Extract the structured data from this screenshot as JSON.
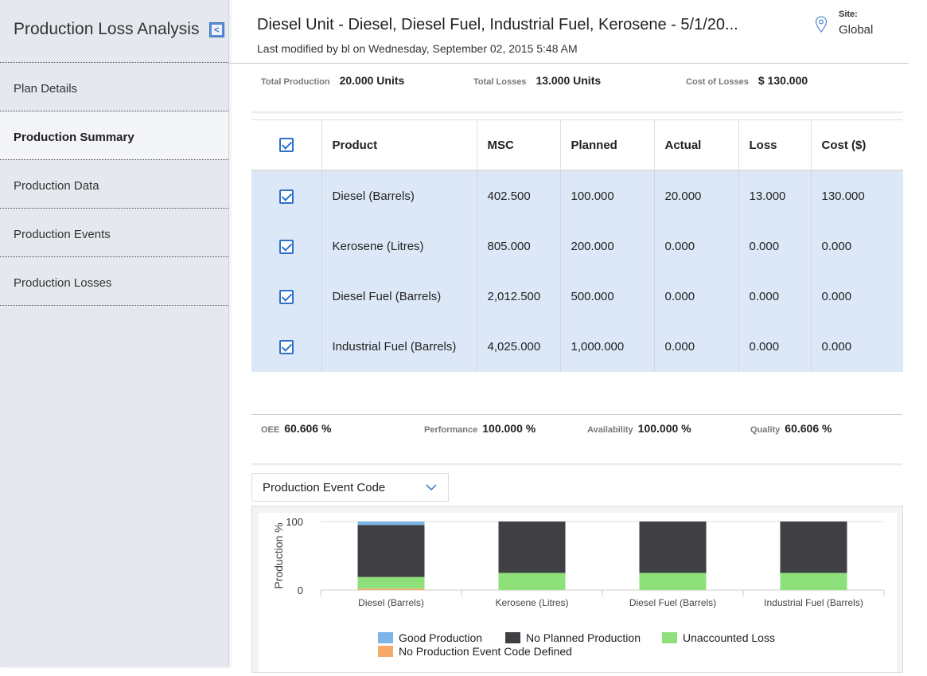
{
  "sidebar": {
    "title": "Production Loss Analysis",
    "collapse_glyph": "<",
    "items": [
      {
        "label": "Plan Details"
      },
      {
        "label": "Production Summary",
        "active": true
      },
      {
        "label": "Production Data"
      },
      {
        "label": "Production Events"
      },
      {
        "label": "Production Losses"
      }
    ]
  },
  "header": {
    "title": "Diesel Unit - Diesel, Diesel Fuel, Industrial Fuel, Kerosene - 5/1/20...",
    "subtitle": "Last modified by bl on Wednesday, September 02, 2015 5:48 AM",
    "site_label": "Site:",
    "site_value": "Global",
    "site_icon": "location-pin-icon"
  },
  "totals": {
    "production_label": "Total Production",
    "production_value": "20.000 Units",
    "losses_label": "Total Losses",
    "losses_value": "13.000 Units",
    "cost_label": "Cost of Losses",
    "cost_value": "$ 130.000"
  },
  "table": {
    "columns": [
      "Product",
      "MSC",
      "Planned",
      "Actual",
      "Loss",
      "Cost ($)"
    ],
    "rows": [
      {
        "checked": true,
        "cells": [
          "Diesel (Barrels)",
          "402.500",
          "100.000",
          "20.000",
          "13.000",
          "130.000"
        ]
      },
      {
        "checked": true,
        "cells": [
          "Kerosene (Litres)",
          "805.000",
          "200.000",
          "0.000",
          "0.000",
          "0.000"
        ]
      },
      {
        "checked": true,
        "cells": [
          "Diesel Fuel (Barrels)",
          "2,012.500",
          "500.000",
          "0.000",
          "0.000",
          "0.000"
        ]
      },
      {
        "checked": true,
        "cells": [
          "Industrial Fuel (Barrels)",
          "4,025.000",
          "1,000.000",
          "0.000",
          "0.000",
          "0.000"
        ]
      }
    ]
  },
  "metrics": {
    "oee_label": "OEE",
    "oee_value": "60.606 %",
    "performance_label": "Performance",
    "performance_value": "100.000 %",
    "availability_label": "Availability",
    "availability_value": "100.000 %",
    "quality_label": "Quality",
    "quality_value": "60.606 %"
  },
  "dropdown": {
    "selected": "Production Event Code"
  },
  "colors": {
    "good": "#7db4ea",
    "no_planned": "#3f3f44",
    "unaccounted": "#8ee07a",
    "no_code": "#f7a968",
    "accent": "#2e71c9"
  },
  "chart_data": {
    "type": "bar",
    "stacked": true,
    "ylabel": "Production %",
    "yticks": [
      "100",
      "0"
    ],
    "ylim": [
      0,
      100
    ],
    "categories": [
      "Diesel (Barrels)",
      "Kerosene (Litres)",
      "Diesel Fuel (Barrels)",
      "Industrial Fuel (Barrels)"
    ],
    "series": [
      {
        "name": "No Production Event Code Defined",
        "color": "#f7a968",
        "values": [
          2,
          0,
          0,
          0
        ]
      },
      {
        "name": "Unaccounted Loss",
        "color": "#8ee07a",
        "values": [
          17,
          25,
          25,
          25
        ]
      },
      {
        "name": "No Planned Production",
        "color": "#3f3f44",
        "values": [
          76,
          75,
          75,
          75
        ]
      },
      {
        "name": "Good Production",
        "color": "#7db4ea",
        "values": [
          5,
          0,
          0,
          0
        ]
      }
    ],
    "legend": {
      "position": "bottom",
      "entries": [
        {
          "name": "Good Production",
          "color": "#7db4ea"
        },
        {
          "name": "No Planned Production",
          "color": "#3f3f44"
        },
        {
          "name": "Unaccounted Loss",
          "color": "#8ee07a"
        },
        {
          "name": "No Production Event Code Defined",
          "color": "#f7a968"
        }
      ]
    },
    "grid": true
  }
}
